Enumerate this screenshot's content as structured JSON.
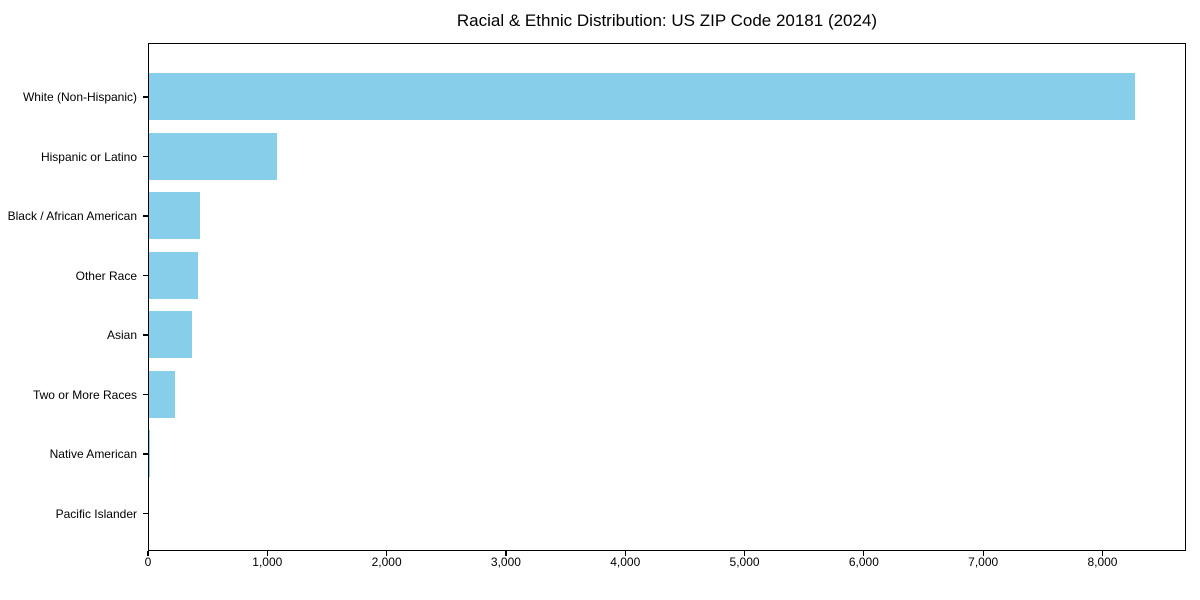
{
  "page": {
    "background_color": "#ffffff",
    "text_color": "#000000"
  },
  "chart_data": {
    "type": "bar",
    "orientation": "horizontal",
    "title": "Racial & Ethnic Distribution: US ZIP Code 20181 (2024)",
    "categories": [
      "White (Non-Hispanic)",
      "Hispanic or Latino",
      "Black / African American",
      "Other Race",
      "Asian",
      "Two or More Races",
      "Native American",
      "Pacific Islander"
    ],
    "values": [
      8283,
      1077,
      428,
      408,
      358,
      220,
      12,
      0
    ],
    "bar_color": "#87CEEB",
    "xlabel": "",
    "ylabel": "",
    "xlim": [
      0,
      8700
    ],
    "x_ticks": [
      0,
      1000,
      2000,
      3000,
      4000,
      5000,
      6000,
      7000,
      8000
    ],
    "x_tick_labels": [
      "0",
      "1,000",
      "2,000",
      "3,000",
      "4,000",
      "5,000",
      "6,000",
      "7,000",
      "8,000"
    ],
    "grid": false,
    "legend_position": "none"
  }
}
